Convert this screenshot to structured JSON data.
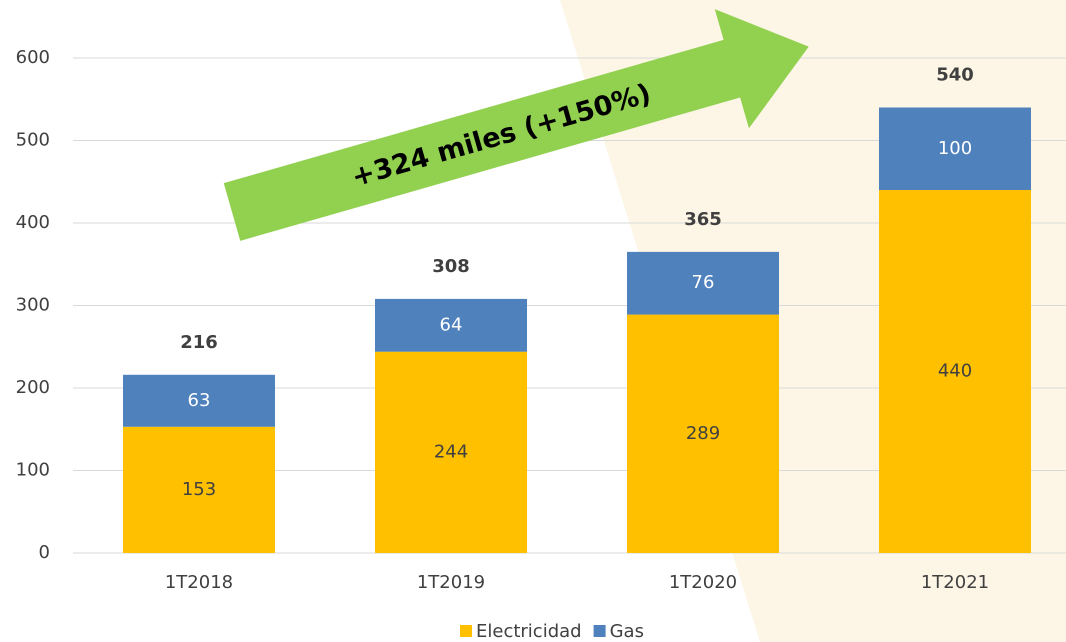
{
  "chart_data": {
    "type": "stacked_bar",
    "categories": [
      "1T2018",
      "1T2019",
      "1T2020",
      "1T2021"
    ],
    "series": [
      {
        "name": "Electricidad",
        "color": "#FFC000",
        "values": [
          153,
          244,
          289,
          440
        ]
      },
      {
        "name": "Gas",
        "color": "#4F81BD",
        "values": [
          63,
          64,
          76,
          100
        ]
      }
    ],
    "totals": [
      216,
      308,
      365,
      540
    ],
    "annotation": "+324 miles  (+150%)",
    "ylim": [
      0,
      600
    ],
    "yticks": [
      0,
      100,
      200,
      300,
      400,
      500,
      600
    ],
    "grid": true,
    "legend": "bottom"
  }
}
